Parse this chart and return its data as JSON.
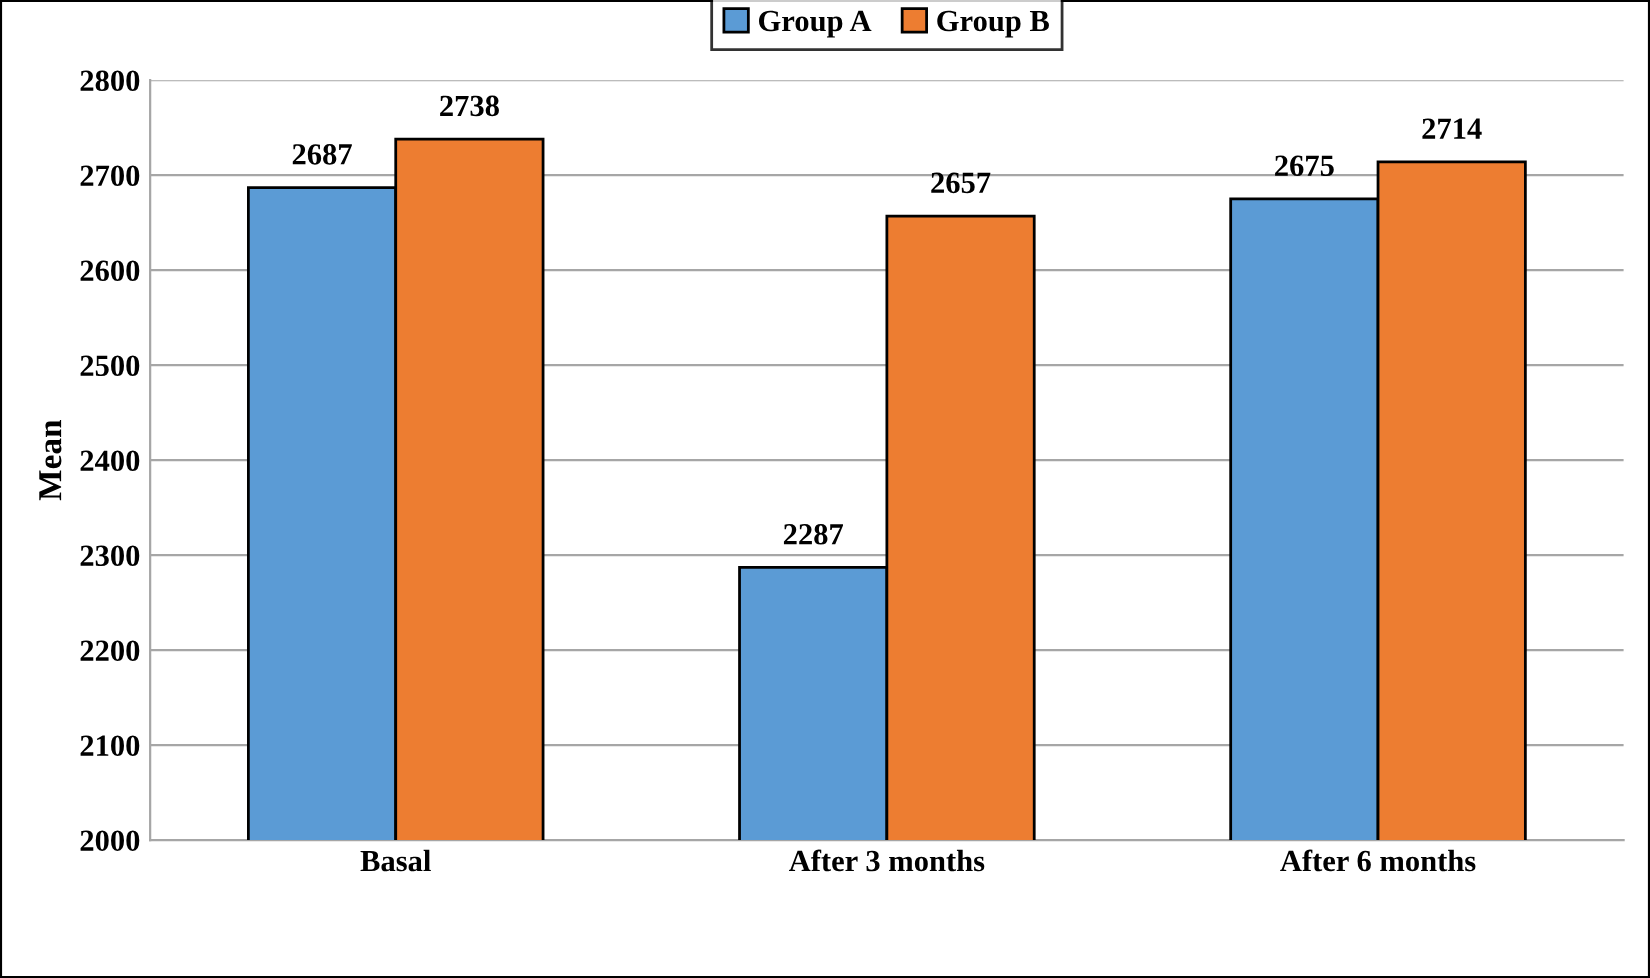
{
  "chart_data": {
    "type": "bar",
    "ylabel": "Mean",
    "categories": [
      "Basal",
      "After 3 months",
      "After 6 months"
    ],
    "series": [
      {
        "name": "Group A",
        "color": "#5b9bd5",
        "values": [
          2687,
          2287,
          2675
        ]
      },
      {
        "name": "Group B",
        "color": "#ed7d31",
        "values": [
          2738,
          2657,
          2714
        ]
      }
    ],
    "ylim": [
      2000,
      2800
    ],
    "yticks": [
      2000,
      2100,
      2200,
      2300,
      2400,
      2500,
      2600,
      2700,
      2800
    ],
    "grid": "y",
    "legend": "top",
    "data_labels": true
  }
}
